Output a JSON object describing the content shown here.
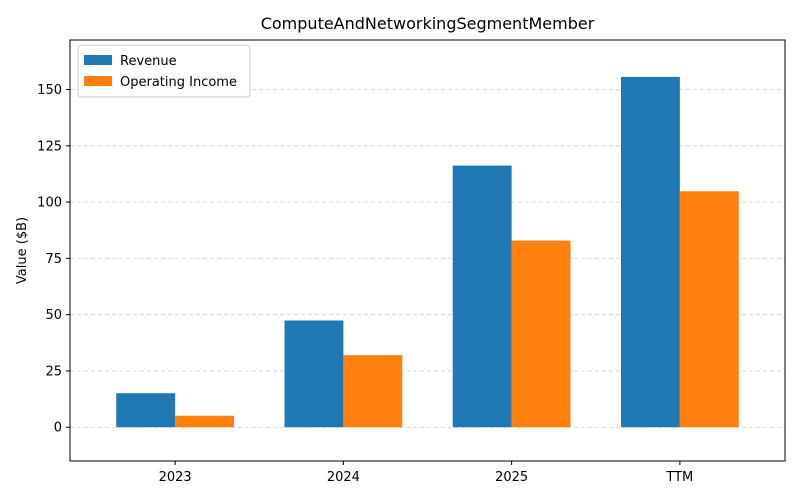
{
  "chart_data": {
    "type": "bar",
    "title": "ComputeAndNetworkingSegmentMember",
    "xlabel": "",
    "ylabel": "Value ($B)",
    "categories": [
      "2023",
      "2024",
      "2025",
      "TTM"
    ],
    "series": [
      {
        "name": "Revenue",
        "color": "#1f77b4",
        "values": [
          15.1,
          47.4,
          116.2,
          155.6
        ]
      },
      {
        "name": "Operating Income",
        "color": "#ff7f0e",
        "values": [
          5.1,
          32.0,
          82.9,
          104.8
        ]
      }
    ],
    "ylim": [
      -15,
      172
    ],
    "yticks": [
      0,
      25,
      50,
      75,
      100,
      125,
      150
    ],
    "grid": true,
    "legend": "top-left"
  }
}
